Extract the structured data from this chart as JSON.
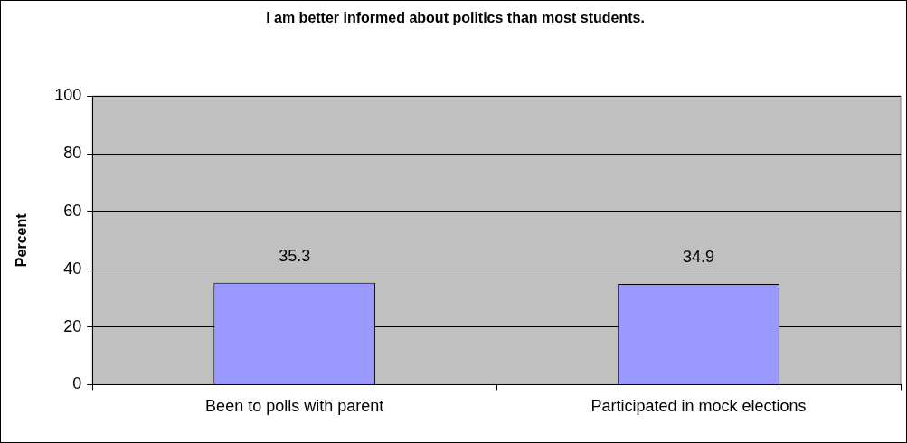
{
  "chart_data": {
    "type": "bar",
    "title": "I am better informed about politics than most students.",
    "ylabel": "Percent",
    "categories": [
      "Been to polls with parent",
      "Participated in mock elections"
    ],
    "values": [
      35.3,
      34.9
    ],
    "color": "#9999ff",
    "ylim": [
      0,
      100
    ],
    "yticks": [
      0,
      20,
      40,
      60,
      80,
      100
    ],
    "grid": "y",
    "legend": false,
    "data_labels": true
  }
}
